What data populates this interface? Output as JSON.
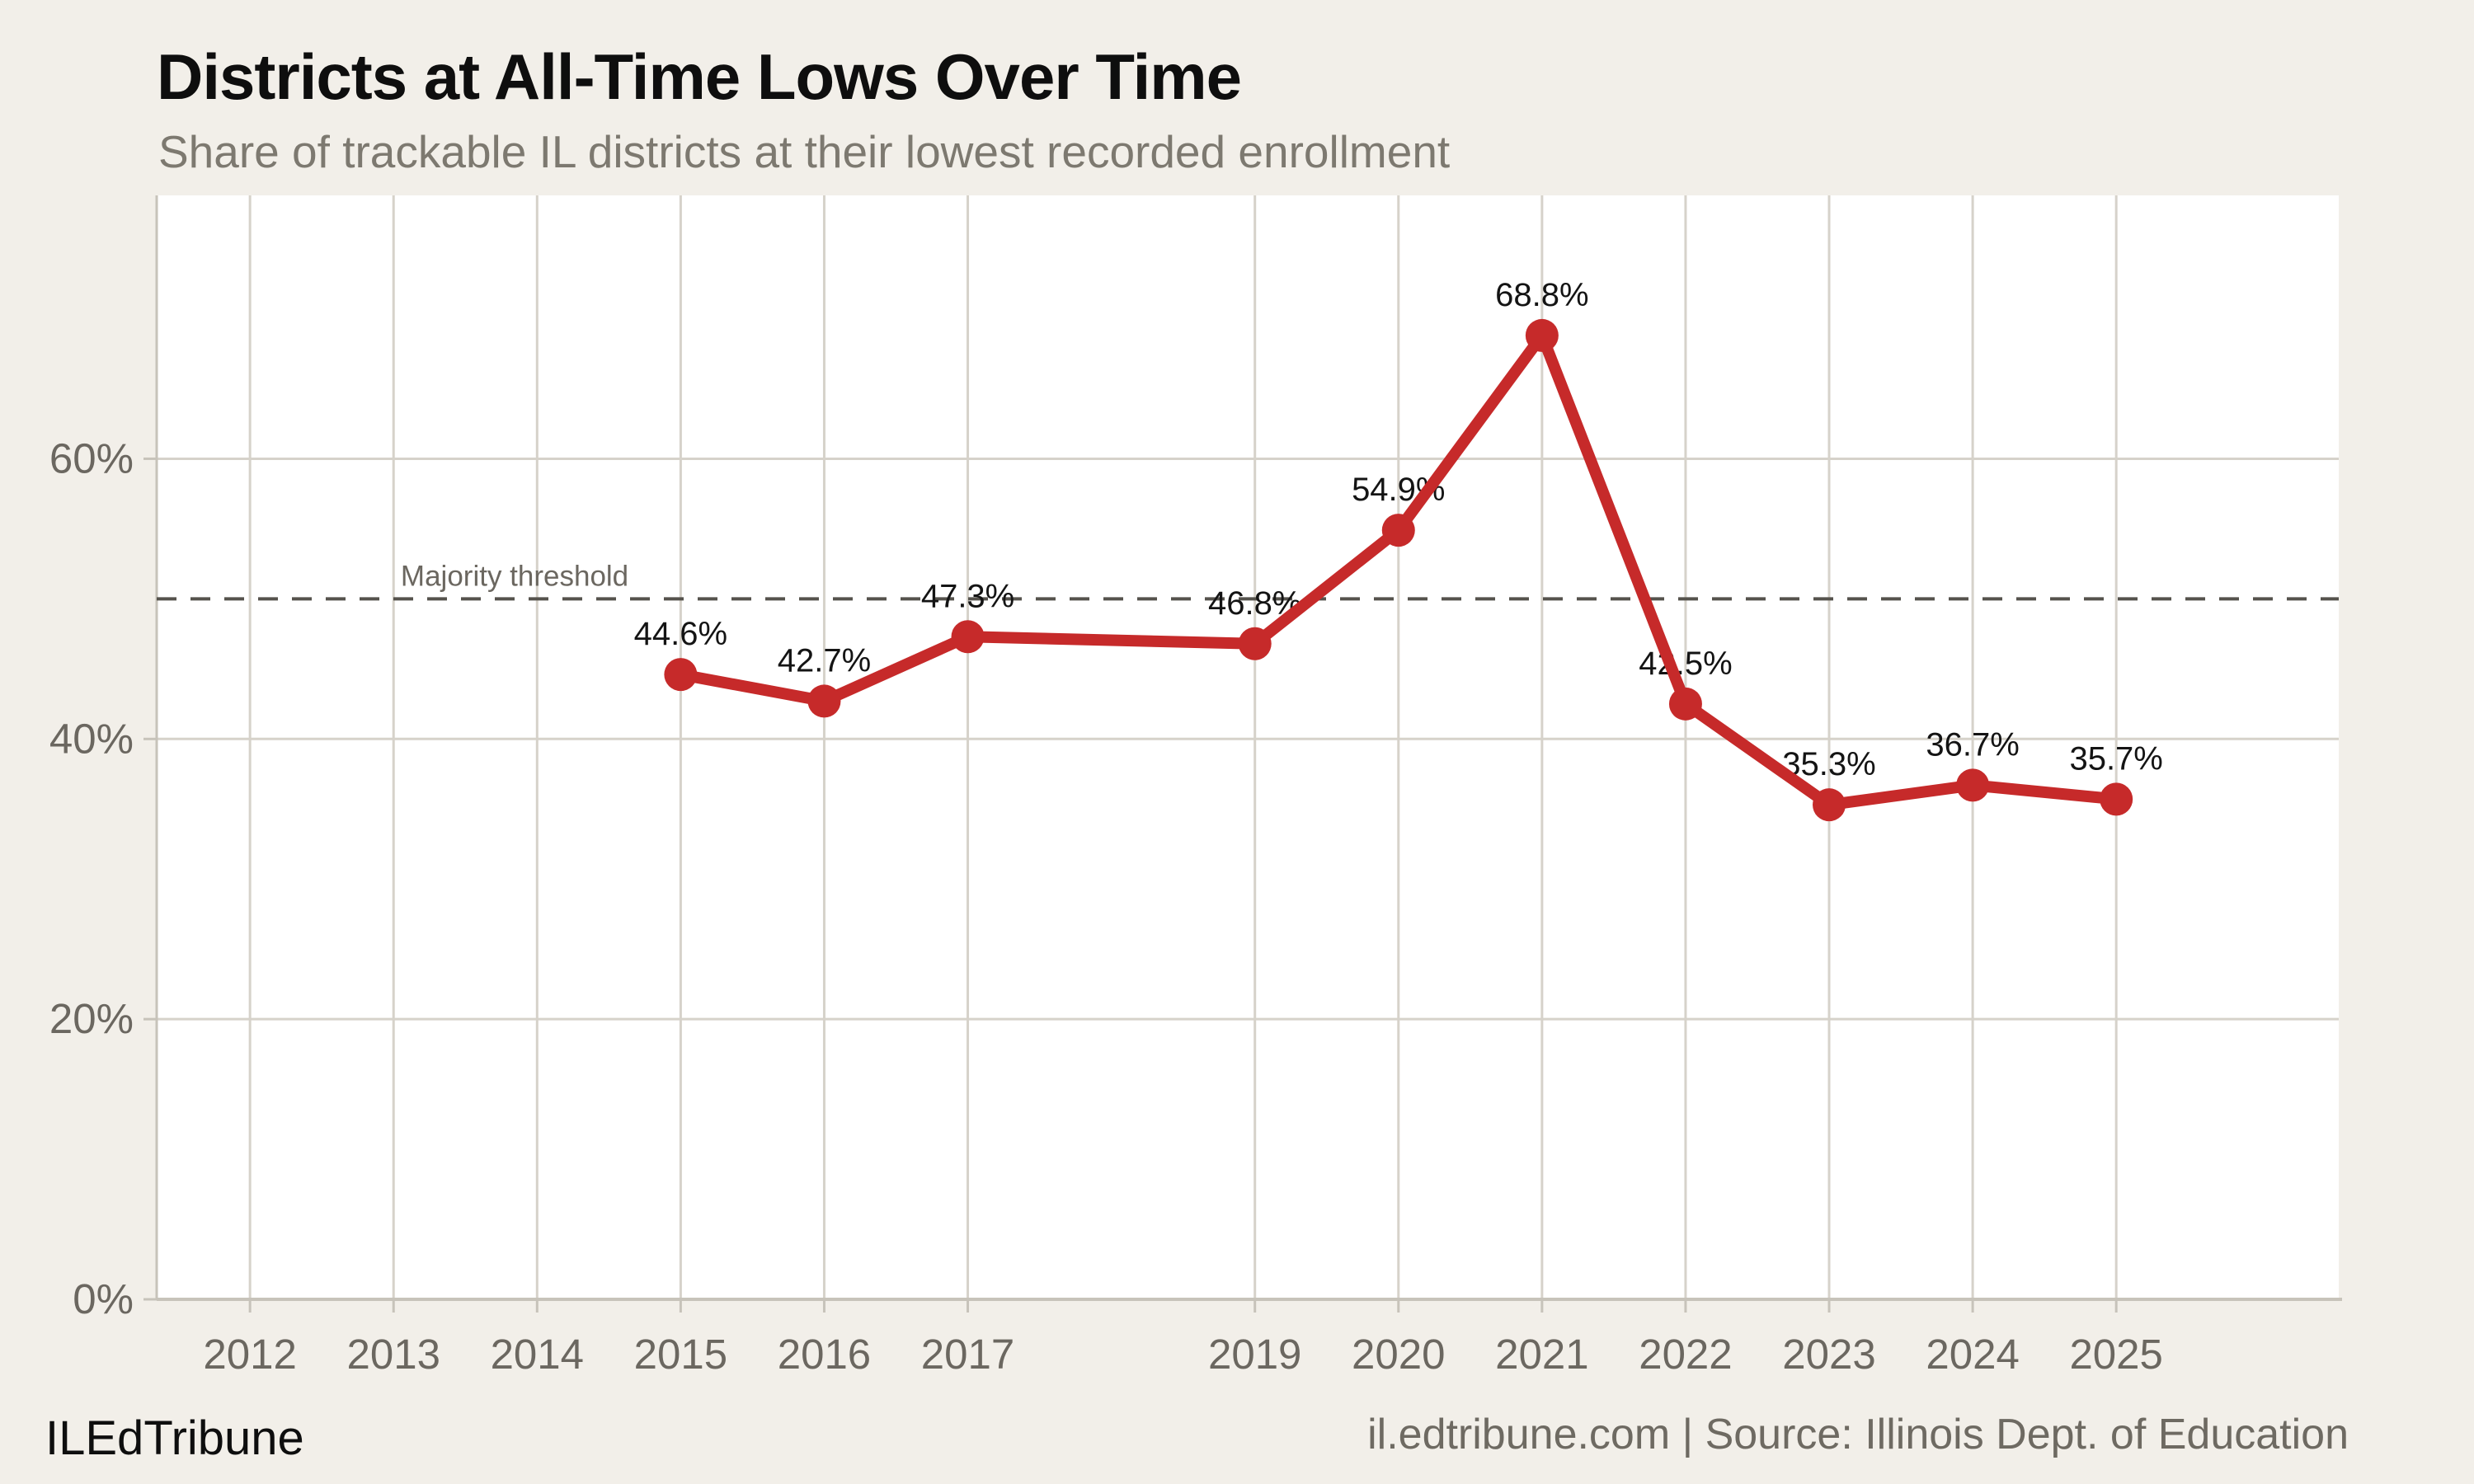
{
  "header": {
    "title": "Districts at All-Time Lows Over Time",
    "subtitle": "Share of trackable IL districts at their lowest recorded enrollment"
  },
  "footer": {
    "brand": "ILEdTribune",
    "attribution": "il.edtribune.com | Source: Illinois Dept. of Education"
  },
  "chart_data": {
    "type": "line",
    "title": "Districts at All-Time Lows Over Time",
    "subtitle": "Share of trackable IL districts at their lowest recorded enrollment",
    "xlabel": "",
    "ylabel": "",
    "x": [
      2015,
      2016,
      2017,
      2019,
      2020,
      2021,
      2022,
      2023,
      2024,
      2025
    ],
    "values": [
      44.6,
      42.7,
      47.3,
      46.8,
      54.9,
      68.8,
      42.5,
      35.3,
      36.7,
      35.7
    ],
    "point_labels": [
      "44.6%",
      "42.7%",
      "47.3%",
      "46.8%",
      "54.9%",
      "68.8%",
      "42.5%",
      "35.3%",
      "36.7%",
      "35.7%"
    ],
    "x_ticks": [
      {
        "value": 2012,
        "label": "2012"
      },
      {
        "value": 2013,
        "label": "2013"
      },
      {
        "value": 2014,
        "label": "2014"
      },
      {
        "value": 2015,
        "label": "2015"
      },
      {
        "value": 2016,
        "label": "2016"
      },
      {
        "value": 2017,
        "label": "2017"
      },
      {
        "value": 2019,
        "label": "2019"
      },
      {
        "value": 2020,
        "label": "2020"
      },
      {
        "value": 2021,
        "label": "2021"
      },
      {
        "value": 2022,
        "label": "2022"
      },
      {
        "value": 2023,
        "label": "2023"
      },
      {
        "value": 2024,
        "label": "2024"
      },
      {
        "value": 2025,
        "label": "2025"
      }
    ],
    "y_ticks": [
      {
        "value": 0,
        "label": "0%"
      },
      {
        "value": 20,
        "label": "20%"
      },
      {
        "value": 40,
        "label": "40%"
      },
      {
        "value": 60,
        "label": "60%"
      }
    ],
    "xlim": [
      2011.35,
      2026.55
    ],
    "ylim": [
      0,
      78.8
    ],
    "grid": true,
    "legend": "none",
    "threshold": {
      "value": 50,
      "label": "Majority threshold"
    },
    "colors": {
      "line": "#c62a2a",
      "threshold": "#55524c",
      "grid": "#d6d2ca",
      "axis": "#c7c3ba",
      "tick_label": "#6b6760",
      "point_label": "#141414",
      "plot_bg": "#ffffff",
      "page_bg": "#f2efe9"
    }
  }
}
